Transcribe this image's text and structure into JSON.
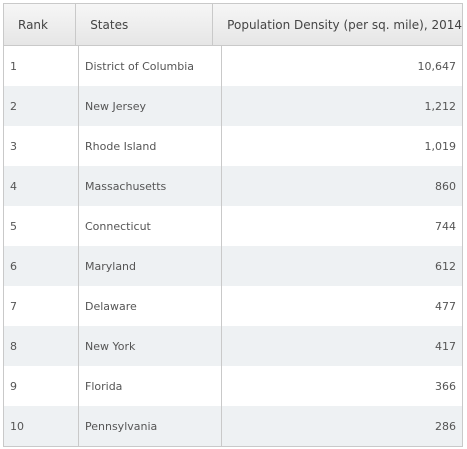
{
  "table": {
    "headers": {
      "rank": "Rank",
      "state": "States",
      "density": "Population Density (per sq. mile), 2014"
    },
    "rows": [
      {
        "rank": "1",
        "state": "District of Columbia",
        "density": "10,647"
      },
      {
        "rank": "2",
        "state": "New Jersey",
        "density": "1,212"
      },
      {
        "rank": "3",
        "state": "Rhode Island",
        "density": "1,019"
      },
      {
        "rank": "4",
        "state": "Massachusetts",
        "density": "860"
      },
      {
        "rank": "5",
        "state": "Connecticut",
        "density": "744"
      },
      {
        "rank": "6",
        "state": "Maryland",
        "density": "612"
      },
      {
        "rank": "7",
        "state": "Delaware",
        "density": "477"
      },
      {
        "rank": "8",
        "state": "New York",
        "density": "417"
      },
      {
        "rank": "9",
        "state": "Florida",
        "density": "366"
      },
      {
        "rank": "10",
        "state": "Pennsylvania",
        "density": "286"
      }
    ]
  },
  "colors": {
    "border": "#c9c9c9",
    "alt_row": "#eef1f3",
    "header_bg": "#eeeeee",
    "text": "#555555"
  }
}
